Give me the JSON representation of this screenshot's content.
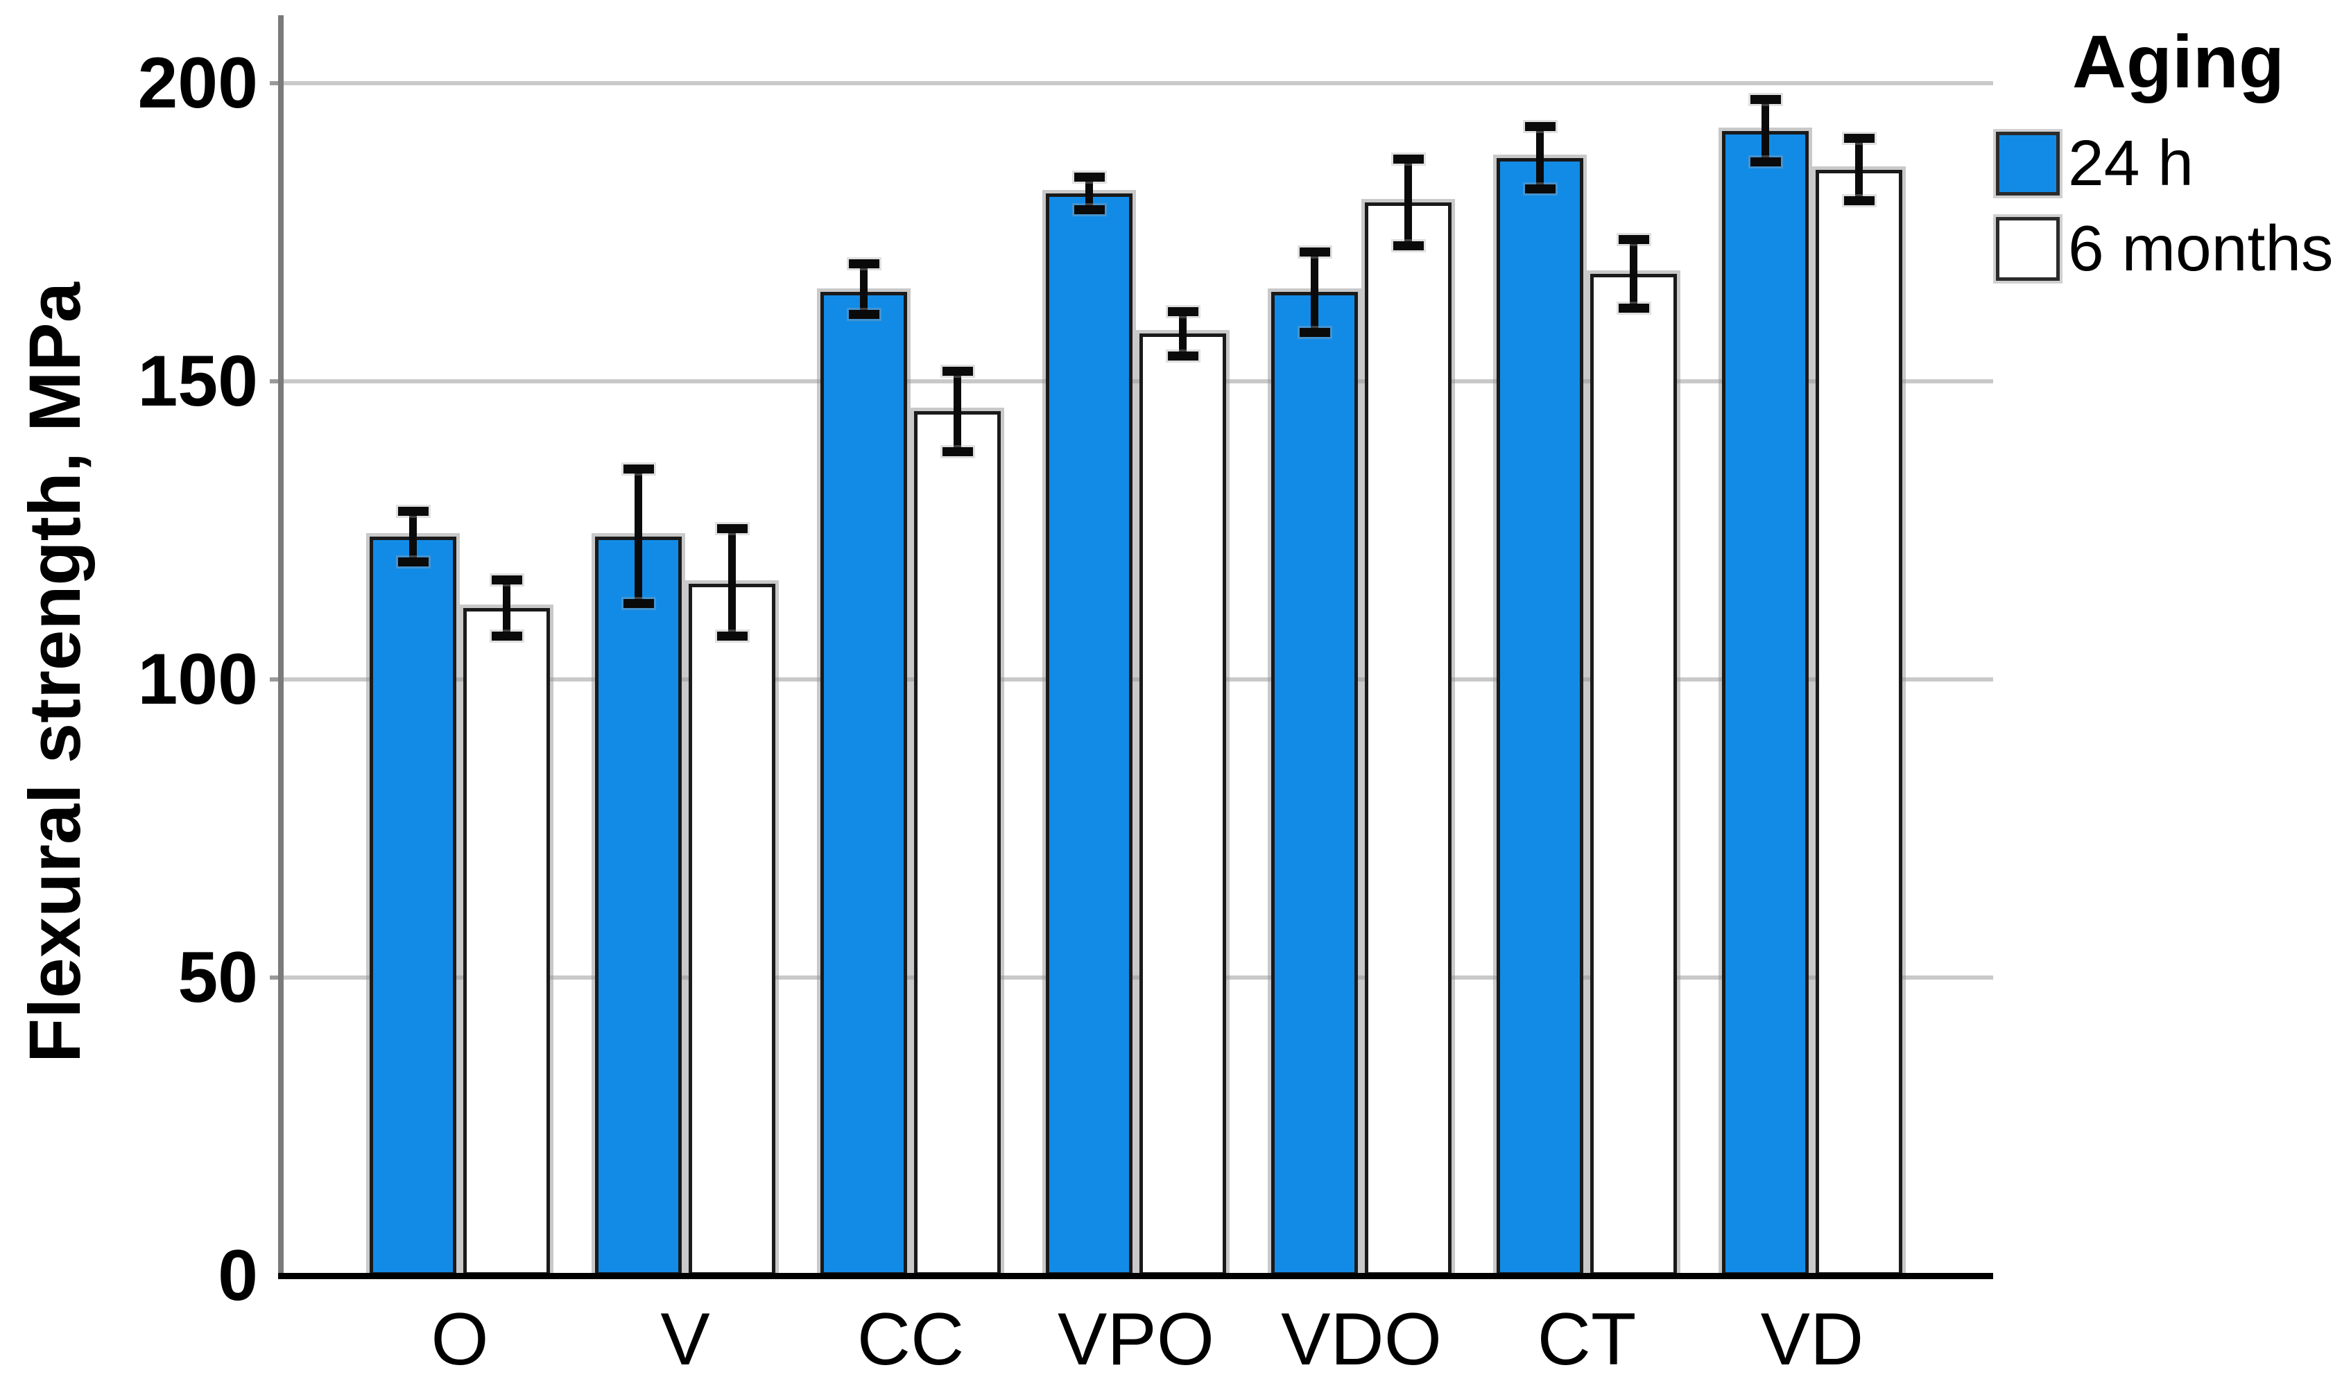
{
  "figure": {
    "background": "#FFFFFF"
  },
  "chart_data": {
    "type": "bar",
    "title": "",
    "ylabel": "Flexural strength, MPa",
    "xlabel": "",
    "categories": [
      "O",
      "V",
      "CC",
      "VPO",
      "VDO",
      "CT",
      "VD"
    ],
    "series": [
      {
        "name": "24 h",
        "fill": "#128BE6",
        "values": [
          124,
          124,
          165,
          181.5,
          165,
          187.5,
          192
        ],
        "err_low": [
          119,
          112,
          160.5,
          178,
          157.5,
          181.5,
          186
        ],
        "err_high": [
          129,
          136,
          170.5,
          185,
          172.5,
          193.5,
          198
        ]
      },
      {
        "name": "6 months",
        "fill": "#FFFFFF",
        "values": [
          112,
          116,
          145,
          158,
          180,
          168,
          185.5
        ],
        "err_low": [
          106.5,
          106.5,
          137.5,
          153.5,
          172,
          161.5,
          179.5
        ],
        "err_high": [
          117.5,
          126,
          152.5,
          162.5,
          188,
          174.5,
          191.5
        ]
      }
    ],
    "legend": {
      "title": "Aging",
      "position": "top-right"
    },
    "yticks": [
      0,
      50,
      100,
      150,
      200
    ],
    "ylim": [
      0,
      210
    ],
    "grid": true,
    "error_bars": true,
    "colors": {
      "grid": "#C9C9C9",
      "y_axis": "#7A7A7A",
      "x_axis": "#000000",
      "bar_border": "#1A1A1A",
      "error_bar": "#0A0A0A",
      "text": "#000000",
      "accent_blue": "#128BE6"
    }
  }
}
